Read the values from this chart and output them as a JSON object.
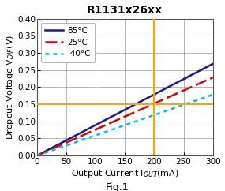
{
  "title": "R1131x26xx",
  "fig_label": "Fig.1",
  "xlim": [
    0,
    300
  ],
  "ylim": [
    0,
    0.4
  ],
  "xticks": [
    0,
    50,
    100,
    150,
    200,
    250,
    300
  ],
  "yticks": [
    0,
    0.05,
    0.1,
    0.15,
    0.2,
    0.25,
    0.3,
    0.35,
    0.4
  ],
  "lines": [
    {
      "label": "85°C",
      "color": "#1A1A8C",
      "linestyle": "solid",
      "linewidth": 1.8,
      "slope": 0.000893
    },
    {
      "label": "25°C",
      "color": "#DD0000",
      "linestyle": "dashed",
      "linewidth": 1.8,
      "slope": 0.00076
    },
    {
      "label": "-40°C",
      "color": "#00BBEE",
      "linestyle": "dotted",
      "linewidth": 1.8,
      "slope": 0.000593
    }
  ],
  "ref_lines": [
    {
      "orientation": "vertical",
      "value": 200,
      "color": "#FFA500",
      "linewidth": 1.5
    },
    {
      "orientation": "horizontal",
      "value": 0.15,
      "color": "#FFA500",
      "linewidth": 1.5
    }
  ],
  "grid_color": "#999999",
  "background_color": "#FFFFFF",
  "title_fontsize": 10,
  "axis_label_fontsize": 8,
  "tick_fontsize": 7.5,
  "legend_fontsize": 7.5,
  "fig_label_fontsize": 9
}
